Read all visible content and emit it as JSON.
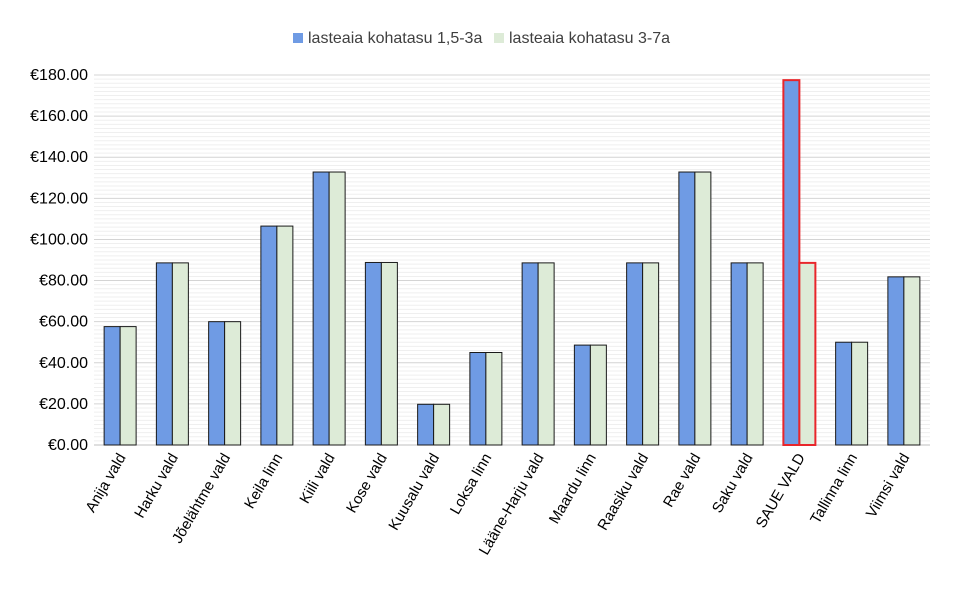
{
  "chart_data": {
    "type": "bar",
    "title": "",
    "xlabel": "",
    "ylabel": "",
    "ylim": [
      0,
      180
    ],
    "y_tick_step": 20,
    "y_tick_labels": [
      "€0.00",
      "€20.00",
      "€40.00",
      "€60.00",
      "€80.00",
      "€100.00",
      "€120.00",
      "€140.00",
      "€160.00",
      "€180.00"
    ],
    "grid": true,
    "legend_position": "top-center",
    "categories": [
      "Anija vald",
      "Harku vald",
      "Jõelähtme vald",
      "Keila linn",
      "Kiili vald",
      "Kose vald",
      "Kuusalu vald",
      "Loksa linn",
      "Lääne-Harju vald",
      "Maardu linn",
      "Raasiku vald",
      "Rae vald",
      "Saku vald",
      "SAUE VALD",
      "Tallinna linn",
      "Viimsi vald"
    ],
    "series": [
      {
        "name": "lasteaia kohatasu 1,5-3a",
        "color": "#6F9BE4",
        "values": [
          57.6,
          88.6,
          60.0,
          106.5,
          132.8,
          88.8,
          19.8,
          45.0,
          88.6,
          48.6,
          88.6,
          132.8,
          88.6,
          177.5,
          50.0,
          81.8
        ]
      },
      {
        "name": "lasteaia kohatasu 3-7a",
        "color": "#DDEBD7",
        "values": [
          57.6,
          88.6,
          60.0,
          106.5,
          132.8,
          88.8,
          19.8,
          45.0,
          88.6,
          48.6,
          88.6,
          132.8,
          88.6,
          88.6,
          50.0,
          81.8
        ]
      }
    ],
    "highlight_category": "SAUE VALD",
    "highlight_color": "#E8262B",
    "bar_border_color": "#1A1A1A"
  }
}
